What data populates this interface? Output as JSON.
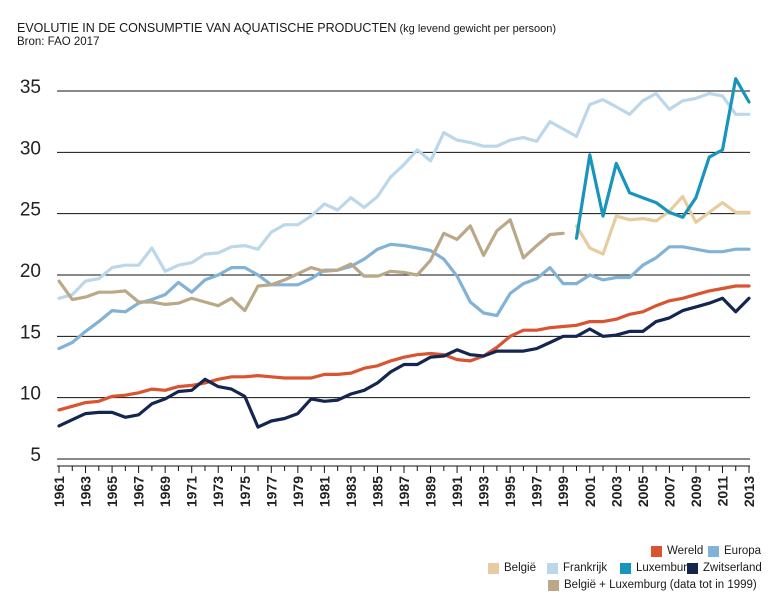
{
  "title": {
    "main": "EVOLUTIE IN DE CONSUMPTIE VAN AQUATISCHE PRODUCTEN",
    "unit": " (kg levend gewicht per persoon)",
    "source": "Bron: FAO 2017"
  },
  "chart_data": {
    "type": "line",
    "title": "EVOLUTIE IN DE CONSUMPTIE VAN AQUATISCHE PRODUCTEN (kg levend gewicht per persoon)",
    "xlabel": "",
    "ylabel": "",
    "ylim": [
      5,
      37
    ],
    "xlim": [
      1961,
      2013
    ],
    "yticks": [
      5,
      10,
      15,
      20,
      25,
      30,
      35
    ],
    "xticks": [
      1961,
      1963,
      1965,
      1967,
      1969,
      1971,
      1973,
      1975,
      1977,
      1979,
      1981,
      1983,
      1985,
      1987,
      1989,
      1991,
      1993,
      1995,
      1997,
      1999,
      2001,
      2003,
      2005,
      2007,
      2009,
      2011,
      2013
    ],
    "grid": "horizontal",
    "legend_position": "bottom-right",
    "series": [
      {
        "name": "Frankrijk",
        "color": "#bcd7ea",
        "x": [
          1961,
          1962,
          1963,
          1964,
          1965,
          1966,
          1967,
          1968,
          1969,
          1970,
          1971,
          1972,
          1973,
          1974,
          1975,
          1976,
          1977,
          1978,
          1979,
          1980,
          1981,
          1982,
          1983,
          1984,
          1985,
          1986,
          1987,
          1988,
          1989,
          1990,
          1991,
          1992,
          1993,
          1994,
          1995,
          1996,
          1997,
          1998,
          1999,
          2000,
          2001,
          2002,
          2003,
          2004,
          2005,
          2006,
          2007,
          2008,
          2009,
          2010,
          2011,
          2012,
          2013
        ],
        "values": [
          18.1,
          18.4,
          19.5,
          19.7,
          20.6,
          20.8,
          20.8,
          22.2,
          20.3,
          20.8,
          21.0,
          21.7,
          21.8,
          22.3,
          22.4,
          22.1,
          23.5,
          24.1,
          24.1,
          24.8,
          25.8,
          25.3,
          26.3,
          25.5,
          26.4,
          28.0,
          29.0,
          30.2,
          29.3,
          31.6,
          31.0,
          30.8,
          30.5,
          30.5,
          31.0,
          31.2,
          30.9,
          32.5,
          31.9,
          31.3,
          33.9,
          34.3,
          33.7,
          33.1,
          34.2,
          34.8,
          33.5,
          34.2,
          34.4,
          34.8,
          34.6,
          33.1,
          33.1
        ]
      },
      {
        "name": "Europa",
        "color": "#82b2d5",
        "x": [
          1961,
          1962,
          1963,
          1964,
          1965,
          1966,
          1967,
          1968,
          1969,
          1970,
          1971,
          1972,
          1973,
          1974,
          1975,
          1976,
          1977,
          1978,
          1979,
          1980,
          1981,
          1982,
          1983,
          1984,
          1985,
          1986,
          1987,
          1988,
          1989,
          1990,
          1991,
          1992,
          1993,
          1994,
          1995,
          1996,
          1997,
          1998,
          1999,
          2000,
          2001,
          2002,
          2003,
          2004,
          2005,
          2006,
          2007,
          2008,
          2009,
          2010,
          2011,
          2012,
          2013
        ],
        "values": [
          14.0,
          14.5,
          15.4,
          16.2,
          17.1,
          17.0,
          17.7,
          18.0,
          18.4,
          19.4,
          18.6,
          19.6,
          20.0,
          20.6,
          20.6,
          20.0,
          19.2,
          19.2,
          19.2,
          19.7,
          20.4,
          20.4,
          20.7,
          21.3,
          22.1,
          22.5,
          22.4,
          22.2,
          22.0,
          21.3,
          19.9,
          17.8,
          16.9,
          16.7,
          18.5,
          19.3,
          19.7,
          20.6,
          19.3,
          19.3,
          20.0,
          19.6,
          19.8,
          19.8,
          20.8,
          21.4,
          22.3,
          22.3,
          22.1,
          21.9,
          21.9,
          22.1,
          22.1
        ]
      },
      {
        "name": "Wereld",
        "color": "#d95430",
        "x": [
          1961,
          1962,
          1963,
          1964,
          1965,
          1966,
          1967,
          1968,
          1969,
          1970,
          1971,
          1972,
          1973,
          1974,
          1975,
          1976,
          1977,
          1978,
          1979,
          1980,
          1981,
          1982,
          1983,
          1984,
          1985,
          1986,
          1987,
          1988,
          1989,
          1990,
          1991,
          1992,
          1993,
          1994,
          1995,
          1996,
          1997,
          1998,
          1999,
          2000,
          2001,
          2002,
          2003,
          2004,
          2005,
          2006,
          2007,
          2008,
          2009,
          2010,
          2011,
          2012,
          2013
        ],
        "values": [
          9.0,
          9.3,
          9.6,
          9.7,
          10.1,
          10.2,
          10.4,
          10.7,
          10.6,
          10.9,
          11.0,
          11.2,
          11.5,
          11.7,
          11.7,
          11.8,
          11.7,
          11.6,
          11.6,
          11.6,
          11.9,
          11.9,
          12.0,
          12.4,
          12.6,
          13.0,
          13.3,
          13.5,
          13.6,
          13.5,
          13.1,
          13.0,
          13.4,
          14.1,
          15.0,
          15.5,
          15.5,
          15.7,
          15.8,
          15.9,
          16.2,
          16.2,
          16.4,
          16.8,
          17.0,
          17.5,
          17.9,
          18.1,
          18.4,
          18.7,
          18.9,
          19.1,
          19.1
        ]
      },
      {
        "name": "Zwitserland",
        "color": "#14264f",
        "x": [
          1961,
          1962,
          1963,
          1964,
          1965,
          1966,
          1967,
          1968,
          1969,
          1970,
          1971,
          1972,
          1973,
          1974,
          1975,
          1976,
          1977,
          1978,
          1979,
          1980,
          1981,
          1982,
          1983,
          1984,
          1985,
          1986,
          1987,
          1988,
          1989,
          1990,
          1991,
          1992,
          1993,
          1994,
          1995,
          1996,
          1997,
          1998,
          1999,
          2000,
          2001,
          2002,
          2003,
          2004,
          2005,
          2006,
          2007,
          2008,
          2009,
          2010,
          2011,
          2012,
          2013
        ],
        "values": [
          7.7,
          8.2,
          8.7,
          8.8,
          8.8,
          8.4,
          8.6,
          9.5,
          9.9,
          10.5,
          10.6,
          11.5,
          10.9,
          10.7,
          10.1,
          7.6,
          8.1,
          8.3,
          8.7,
          9.9,
          9.7,
          9.8,
          10.3,
          10.6,
          11.2,
          12.1,
          12.7,
          12.7,
          13.3,
          13.4,
          13.9,
          13.5,
          13.4,
          13.8,
          13.8,
          13.8,
          14.0,
          14.5,
          15.0,
          15.0,
          15.6,
          15.0,
          15.1,
          15.4,
          15.4,
          16.2,
          16.5,
          17.1,
          17.4,
          17.7,
          18.1,
          17.0,
          18.1
        ]
      },
      {
        "name": "België + Luxemburg (data tot in 1999)",
        "color": "#bba889",
        "x": [
          1961,
          1962,
          1963,
          1964,
          1965,
          1966,
          1967,
          1968,
          1969,
          1970,
          1971,
          1972,
          1973,
          1974,
          1975,
          1976,
          1977,
          1978,
          1979,
          1980,
          1981,
          1982,
          1983,
          1984,
          1985,
          1986,
          1987,
          1988,
          1989,
          1990,
          1991,
          1992,
          1993,
          1994,
          1995,
          1996,
          1997,
          1998,
          1999
        ],
        "values": [
          19.5,
          18.0,
          18.2,
          18.6,
          18.6,
          18.7,
          17.8,
          17.8,
          17.6,
          17.7,
          18.1,
          17.8,
          17.5,
          18.1,
          17.1,
          19.1,
          19.2,
          19.6,
          20.1,
          20.6,
          20.3,
          20.4,
          20.9,
          19.9,
          19.9,
          20.3,
          20.2,
          20.0,
          21.2,
          23.4,
          22.9,
          24.0,
          21.6,
          23.6,
          24.5,
          21.4,
          22.4,
          23.3,
          23.4
        ]
      },
      {
        "name": "België",
        "color": "#e7cc9f",
        "x": [
          2000,
          2001,
          2002,
          2003,
          2004,
          2005,
          2006,
          2007,
          2008,
          2009,
          2010,
          2011,
          2012,
          2013
        ],
        "values": [
          24.0,
          22.2,
          21.7,
          24.8,
          24.5,
          24.6,
          24.4,
          25.2,
          26.4,
          24.3,
          25.1,
          25.9,
          25.1,
          25.1
        ]
      },
      {
        "name": "Luxemburg",
        "color": "#1995bd",
        "x": [
          2000,
          2001,
          2002,
          2003,
          2004,
          2005,
          2006,
          2007,
          2008,
          2009,
          2010,
          2011,
          2012,
          2013
        ],
        "values": [
          23.0,
          29.8,
          24.8,
          29.1,
          26.7,
          26.3,
          25.9,
          25.1,
          24.7,
          26.3,
          29.6,
          30.2,
          36.0,
          34.1
        ]
      }
    ]
  },
  "legend": {
    "wereld": {
      "label": "Wereld",
      "color": "#d95430"
    },
    "europa": {
      "label": "Europa",
      "color": "#82b2d5"
    },
    "belgie": {
      "label": "België",
      "color": "#e7cc9f"
    },
    "frankrijk": {
      "label": "Frankrijk",
      "color": "#bcd7ea"
    },
    "luxemburg": {
      "label": "Luxemburg",
      "color": "#1995bd"
    },
    "zwitserland": {
      "label": "Zwitserland",
      "color": "#14264f"
    },
    "belux": {
      "label": "België + Luxemburg (data tot in 1999)",
      "color": "#bba889"
    }
  }
}
